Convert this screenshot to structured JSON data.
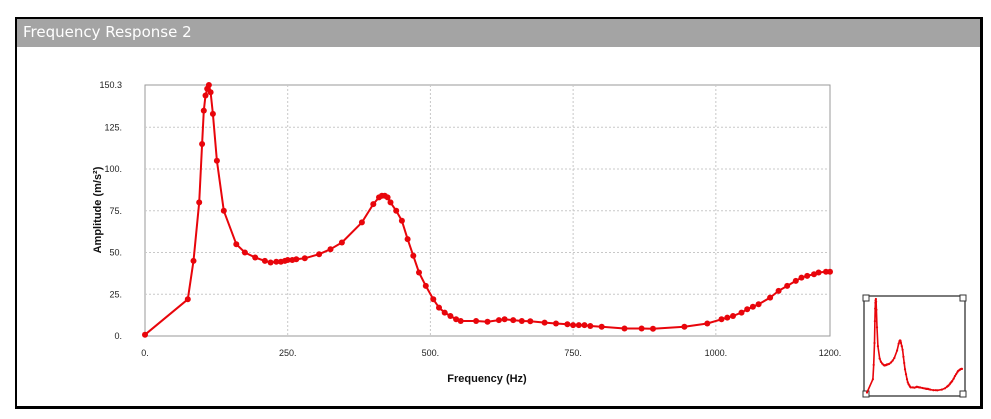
{
  "window": {
    "title": "Frequency Response 2"
  },
  "colors": {
    "series": "#e8050b",
    "titlebar": "#a4a4a4",
    "grid": "#c8c8c8"
  },
  "chart_data": {
    "type": "line",
    "title": "",
    "xlabel": "Frequency (Hz)",
    "ylabel": "Amplitude (m/s²)",
    "xlim": [
      0,
      1200
    ],
    "ylim": [
      0,
      150.3
    ],
    "xticks": [
      0,
      250,
      500,
      750,
      1000,
      1200
    ],
    "xtick_labels": [
      "0.",
      "250.",
      "500.",
      "750.",
      "1000.",
      "1200."
    ],
    "yticks": [
      0,
      25,
      50,
      75,
      100,
      125,
      150.3
    ],
    "ytick_labels": [
      "0.",
      "25.",
      "50.",
      "75.",
      "100.",
      "125.",
      "150.3"
    ],
    "grid": true,
    "markers": true,
    "series": [
      {
        "values": [
          [
            0,
            0.8
          ],
          [
            75,
            22
          ],
          [
            85,
            45
          ],
          [
            95,
            80
          ],
          [
            100,
            115
          ],
          [
            103,
            135
          ],
          [
            106,
            144
          ],
          [
            109,
            148
          ],
          [
            112,
            150.3
          ],
          [
            115,
            146
          ],
          [
            119,
            133
          ],
          [
            126,
            105
          ],
          [
            138,
            75
          ],
          [
            160,
            55
          ],
          [
            175,
            50
          ],
          [
            193,
            47
          ],
          [
            210,
            45
          ],
          [
            220,
            44
          ],
          [
            230,
            44.5
          ],
          [
            238,
            44.5
          ],
          [
            245,
            45
          ],
          [
            250,
            45.5
          ],
          [
            258,
            45.5
          ],
          [
            265,
            46
          ],
          [
            280,
            46.5
          ],
          [
            305,
            49
          ],
          [
            325,
            52
          ],
          [
            345,
            56
          ],
          [
            380,
            68
          ],
          [
            400,
            79
          ],
          [
            410,
            83
          ],
          [
            415,
            84
          ],
          [
            420,
            84
          ],
          [
            425,
            83
          ],
          [
            430,
            80
          ],
          [
            440,
            75
          ],
          [
            450,
            69
          ],
          [
            460,
            58
          ],
          [
            470,
            48
          ],
          [
            480,
            38
          ],
          [
            492,
            30
          ],
          [
            505,
            22
          ],
          [
            515,
            17
          ],
          [
            525,
            14
          ],
          [
            535,
            12
          ],
          [
            545,
            10
          ],
          [
            553,
            9
          ],
          [
            580,
            9
          ],
          [
            600,
            8.5
          ],
          [
            620,
            9.5
          ],
          [
            630,
            10
          ],
          [
            645,
            9.5
          ],
          [
            660,
            9
          ],
          [
            675,
            8.8
          ],
          [
            700,
            8
          ],
          [
            720,
            7.5
          ],
          [
            740,
            7
          ],
          [
            750,
            6.5
          ],
          [
            760,
            6.5
          ],
          [
            770,
            6.5
          ],
          [
            780,
            6
          ],
          [
            800,
            5.5
          ],
          [
            840,
            4.5
          ],
          [
            870,
            4.5
          ],
          [
            890,
            4.3
          ],
          [
            945,
            5.5
          ],
          [
            985,
            7.5
          ],
          [
            1010,
            10
          ],
          [
            1020,
            11
          ],
          [
            1030,
            12
          ],
          [
            1045,
            14
          ],
          [
            1055,
            16
          ],
          [
            1065,
            17.5
          ],
          [
            1075,
            19
          ],
          [
            1095,
            23
          ],
          [
            1110,
            27
          ],
          [
            1125,
            30
          ],
          [
            1140,
            33
          ],
          [
            1150,
            35
          ],
          [
            1160,
            36
          ],
          [
            1172,
            37
          ],
          [
            1180,
            38
          ],
          [
            1193,
            38.5
          ],
          [
            1200,
            38.5
          ]
        ]
      }
    ],
    "overview": {
      "type": "line",
      "source": "series[0]"
    }
  }
}
